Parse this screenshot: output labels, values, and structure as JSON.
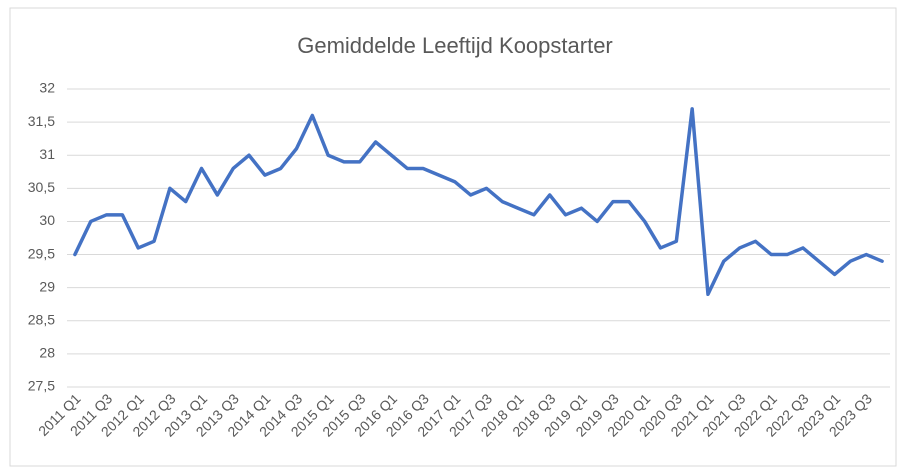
{
  "chart_data": {
    "type": "line",
    "title": "Gemiddelde Leeftijd Koopstarter",
    "categories": [
      "2011 Q1",
      null,
      "2011 Q3",
      null,
      "2012 Q1",
      null,
      "2012 Q3",
      null,
      "2013 Q1",
      null,
      "2013 Q3",
      null,
      "2014 Q1",
      null,
      "2014 Q3",
      null,
      "2015 Q1",
      null,
      "2015 Q3",
      null,
      "2016 Q1",
      null,
      "2016 Q3",
      null,
      "2017 Q1",
      null,
      "2017 Q3",
      null,
      "2018 Q1",
      null,
      "2018 Q3",
      null,
      "2019 Q1",
      null,
      "2019 Q3",
      null,
      "2020 Q1",
      null,
      "2020 Q3",
      null,
      "2021 Q1",
      null,
      "2021 Q3",
      null,
      "2022 Q1",
      null,
      "2022 Q3",
      null,
      "2023 Q1",
      null,
      "2023 Q3",
      null
    ],
    "values": [
      29.5,
      30.0,
      30.1,
      30.1,
      29.6,
      29.7,
      30.5,
      30.3,
      30.8,
      30.4,
      30.8,
      31.0,
      30.7,
      30.8,
      31.1,
      31.6,
      31.0,
      30.9,
      30.9,
      31.2,
      31.0,
      30.8,
      30.8,
      30.7,
      30.6,
      30.4,
      30.5,
      30.3,
      30.2,
      30.1,
      30.4,
      30.1,
      30.2,
      30.0,
      30.3,
      30.3,
      30.0,
      29.6,
      29.7,
      31.7,
      28.9,
      29.4,
      29.6,
      29.7,
      29.5,
      29.5,
      29.6,
      29.4,
      29.2,
      29.4,
      29.5,
      29.4
    ],
    "color": "#4472c4",
    "ylim": [
      27.5,
      32
    ],
    "yticks": [
      {
        "value": 27.5,
        "label": "27,5"
      },
      28,
      {
        "value": 28.5,
        "label": "28,5"
      },
      29,
      {
        "value": 29.5,
        "label": "29,5"
      },
      30,
      {
        "value": 30.5,
        "label": "30,5"
      },
      31,
      {
        "value": 31.5,
        "label": "31,5"
      },
      32
    ],
    "grid": true
  }
}
